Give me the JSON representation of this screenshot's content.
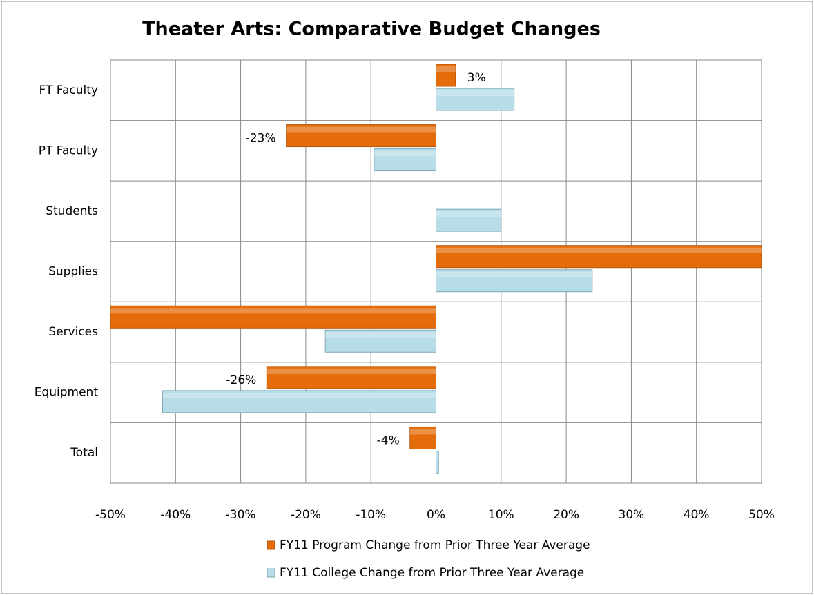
{
  "chart_data": {
    "type": "hbar",
    "title": "Theater Arts: Comparative Budget Changes",
    "categories": [
      "FT Faculty",
      "PT Faculty",
      "Students",
      "Supplies",
      "Services",
      "Equipment",
      "Total"
    ],
    "series": [
      {
        "name": "FY11 Program Change from Prior Three Year Average",
        "color": "#e46c0a",
        "values": [
          3,
          -23,
          0,
          50,
          -50,
          -26,
          -4
        ],
        "value_labels": [
          "3%",
          "-23%",
          null,
          null,
          null,
          "-26%",
          "-4%"
        ]
      },
      {
        "name": "FY11 College Change from Prior Three Year Average",
        "color": "#b7dde8",
        "values": [
          12,
          -9.5,
          10,
          24,
          -17,
          -42,
          0.4
        ]
      }
    ],
    "xlim": [
      -50,
      50
    ],
    "xticks": [
      {
        "value": -50,
        "label": "-50%"
      },
      {
        "value": -40,
        "label": "-40%"
      },
      {
        "value": -30,
        "label": "-30%"
      },
      {
        "value": -20,
        "label": "-20%"
      },
      {
        "value": -10,
        "label": "-10%"
      },
      {
        "value": 0,
        "label": "0%"
      },
      {
        "value": 10,
        "label": "10%"
      },
      {
        "value": 20,
        "label": "20%"
      },
      {
        "value": 30,
        "label": "30%"
      },
      {
        "value": 40,
        "label": "40%"
      },
      {
        "value": 50,
        "label": "50%"
      }
    ],
    "grid": true,
    "legend": "bottom"
  }
}
